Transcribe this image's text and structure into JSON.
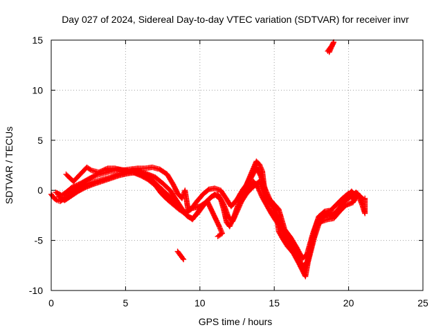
{
  "chart_data": {
    "type": "scatter",
    "title": "Day 027 of 2024, Sidereal Day-to-day VTEC variation (SDTVAR) for receiver invr",
    "xlabel": "GPS time / hours",
    "ylabel": "SDTVAR / TECUs",
    "xlim": [
      0,
      25
    ],
    "ylim": [
      -10,
      15
    ],
    "xticks": [
      0,
      5,
      10,
      15,
      20,
      25
    ],
    "yticks": [
      -10,
      -5,
      0,
      5,
      10,
      15
    ],
    "grid": true,
    "marker": "plus",
    "color": "#ff0000",
    "series": [
      {
        "name": "main-track-a",
        "points": [
          [
            0,
            -0.4
          ],
          [
            0.2,
            -0.8
          ],
          [
            0.4,
            -1.0
          ],
          [
            0.6,
            -1.1
          ],
          [
            0.8,
            -0.9
          ],
          [
            1,
            -0.6
          ],
          [
            1.2,
            -0.3
          ],
          [
            1.5,
            0
          ],
          [
            1.8,
            0.2
          ],
          [
            2,
            0.4
          ],
          [
            2.2,
            0.6
          ],
          [
            2.5,
            0.7
          ],
          [
            3,
            0.9
          ],
          [
            3.5,
            1.1
          ],
          [
            4,
            1.3
          ],
          [
            4.5,
            1.6
          ],
          [
            5,
            1.8
          ],
          [
            5.5,
            2.0
          ],
          [
            6,
            1.9
          ],
          [
            6.5,
            1.6
          ],
          [
            7,
            1.3
          ],
          [
            7.5,
            0.7
          ],
          [
            8,
            0
          ],
          [
            8.3,
            -0.7
          ],
          [
            8.6,
            -1.4
          ],
          [
            8.9,
            -2.1
          ],
          [
            9.2,
            -2.6
          ],
          [
            9.5,
            -2.8
          ],
          [
            9.8,
            -2.4
          ],
          [
            10.2,
            -1.6
          ],
          [
            10.6,
            -0.9
          ],
          [
            11,
            -0.4
          ],
          [
            11.4,
            -0.9
          ],
          [
            11.6,
            -1.9
          ],
          [
            11.8,
            -3.2
          ],
          [
            12,
            -3.6
          ],
          [
            12.3,
            -2.6
          ],
          [
            12.6,
            -1.3
          ],
          [
            13,
            -0.4
          ],
          [
            13.3,
            0.4
          ],
          [
            13.6,
            0.9
          ],
          [
            13.9,
            0.3
          ],
          [
            14.2,
            -0.7
          ],
          [
            14.5,
            -1.5
          ],
          [
            14.8,
            -2.3
          ],
          [
            15.1,
            -3.0
          ],
          [
            15.4,
            -3.6
          ],
          [
            15.8,
            -4.5
          ],
          [
            16.2,
            -5.5
          ],
          [
            16.6,
            -6.6
          ],
          [
            16.9,
            -7.6
          ],
          [
            17.2,
            -7.2
          ],
          [
            17.5,
            -5.2
          ],
          [
            17.9,
            -3.1
          ],
          [
            18.3,
            -2.4
          ],
          [
            18.7,
            -2.2
          ],
          [
            19.1,
            -2.3
          ],
          [
            19.5,
            -1.6
          ],
          [
            19.9,
            -0.6
          ],
          [
            20.2,
            -0.1
          ],
          [
            20.5,
            -0.6
          ]
        ]
      },
      {
        "name": "main-track-b",
        "points": [
          [
            0.3,
            -0.2
          ],
          [
            0.7,
            -0.5
          ],
          [
            1,
            -0.2
          ],
          [
            1.4,
            0.3
          ],
          [
            2,
            0.7
          ],
          [
            2.6,
            1.2
          ],
          [
            3,
            1.5
          ],
          [
            3.5,
            1.7
          ],
          [
            4,
            1.9
          ],
          [
            4.5,
            2.1
          ],
          [
            5,
            2.0
          ],
          [
            5.5,
            1.8
          ],
          [
            6,
            1.5
          ],
          [
            6.5,
            1.1
          ],
          [
            7,
            0.5
          ],
          [
            7.4,
            -0.3
          ],
          [
            7.8,
            -0.9
          ],
          [
            8.2,
            -1.4
          ],
          [
            8.6,
            -1.9
          ],
          [
            9,
            -2.3
          ],
          [
            9.4,
            -1.9
          ],
          [
            9.8,
            -1.1
          ],
          [
            10.2,
            -0.4
          ],
          [
            10.6,
            0.1
          ],
          [
            11,
            0.2
          ],
          [
            11.4,
            0
          ],
          [
            11.8,
            -0.9
          ],
          [
            12.1,
            -1.6
          ],
          [
            12.5,
            -0.9
          ],
          [
            12.9,
            0.1
          ],
          [
            13.2,
            0.7
          ],
          [
            13.5,
            1.4
          ],
          [
            13.8,
            2.3
          ],
          [
            14.1,
            1.4
          ],
          [
            14.4,
            0.1
          ],
          [
            14.7,
            -0.9
          ],
          [
            15,
            -1.4
          ],
          [
            15.3,
            -1.9
          ],
          [
            15.7,
            -3.9
          ],
          [
            16.1,
            -4.7
          ],
          [
            16.5,
            -5.7
          ],
          [
            16.9,
            -6.8
          ],
          [
            17.2,
            -6.4
          ],
          [
            17.6,
            -4.3
          ],
          [
            18,
            -2.6
          ],
          [
            18.4,
            -2.1
          ],
          [
            18.8,
            -2.0
          ],
          [
            19.2,
            -1.4
          ],
          [
            19.6,
            -0.8
          ],
          [
            20,
            -0.3
          ],
          [
            20.4,
            -1.0
          ]
        ]
      },
      {
        "name": "main-track-c",
        "points": [
          [
            0.5,
            -0.6
          ],
          [
            0.9,
            -1.0
          ],
          [
            1.3,
            -0.6
          ],
          [
            1.8,
            -0.1
          ],
          [
            2.3,
            0.3
          ],
          [
            2.8,
            0.6
          ],
          [
            3.4,
            0.9
          ],
          [
            4,
            1.2
          ],
          [
            4.6,
            1.5
          ],
          [
            5.2,
            1.7
          ],
          [
            5.8,
            1.8
          ],
          [
            6.3,
            1.5
          ],
          [
            6.8,
            1.0
          ],
          [
            7.3,
            0.3
          ],
          [
            7.8,
            -0.4
          ],
          [
            8.2,
            -1.0
          ],
          [
            8.7,
            -1.7
          ],
          [
            9.1,
            -2.5
          ],
          [
            9.5,
            -2.9
          ],
          [
            9.9,
            -2.1
          ],
          [
            10.3,
            -1.3
          ],
          [
            10.8,
            -0.6
          ],
          [
            11.2,
            -0.4
          ],
          [
            11.6,
            -1.4
          ],
          [
            11.9,
            -2.6
          ],
          [
            12.2,
            -3.1
          ],
          [
            12.5,
            -2.1
          ],
          [
            12.8,
            -1.1
          ],
          [
            13.1,
            -0.4
          ],
          [
            13.4,
            0.1
          ],
          [
            13.7,
            0.5
          ],
          [
            14,
            0.9
          ],
          [
            14.3,
            0
          ],
          [
            14.6,
            -1.1
          ],
          [
            15,
            -1.7
          ],
          [
            15.4,
            -3.3
          ],
          [
            15.8,
            -5.3
          ],
          [
            16.2,
            -5.9
          ],
          [
            16.6,
            -6.9
          ],
          [
            17,
            -8.0
          ],
          [
            17.3,
            -7.0
          ],
          [
            17.7,
            -4.7
          ],
          [
            18.1,
            -2.9
          ],
          [
            18.5,
            -2.5
          ],
          [
            18.9,
            -2.6
          ],
          [
            19.3,
            -1.9
          ],
          [
            19.7,
            -1.1
          ],
          [
            20.1,
            -0.7
          ],
          [
            20.5,
            -0.2
          ],
          [
            21,
            -0.9
          ]
        ]
      },
      {
        "name": "main-track-d",
        "points": [
          [
            1,
            1.6
          ],
          [
            1.2,
            1.3
          ],
          [
            1.5,
            0.9
          ],
          [
            2.4,
            2.3
          ],
          [
            2.7,
            2.0
          ],
          [
            3.2,
            1.8
          ],
          [
            3.8,
            2.2
          ],
          [
            4.3,
            2.2
          ],
          [
            4.8,
            2.0
          ],
          [
            5.3,
            2.1
          ],
          [
            5.8,
            2.2
          ],
          [
            6.3,
            2.2
          ],
          [
            6.8,
            2.3
          ],
          [
            7.3,
            2.1
          ],
          [
            7.8,
            1.6
          ],
          [
            8.2,
            0.6
          ],
          [
            8.5,
            -0.3
          ],
          [
            8.8,
            -0.8
          ],
          [
            9,
            0
          ],
          [
            9.2,
            -1.9
          ],
          [
            10,
            -1.6
          ],
          [
            10.5,
            -1.1
          ],
          [
            11.3,
            -3.6
          ],
          [
            11.5,
            -4.3
          ],
          [
            11.2,
            -4.6
          ],
          [
            12.7,
            -0.4
          ],
          [
            13,
            0.1
          ],
          [
            13.8,
            2.9
          ],
          [
            14,
            2.6
          ],
          [
            14.2,
            1.9
          ],
          [
            14.4,
            -0.6
          ],
          [
            14.9,
            -1.6
          ],
          [
            15.2,
            -2.9
          ],
          [
            15.3,
            -4.1
          ],
          [
            15.6,
            -4.9
          ],
          [
            15.9,
            -5.6
          ],
          [
            16.3,
            -6.3
          ],
          [
            16.7,
            -7.4
          ],
          [
            17,
            -8.3
          ],
          [
            17.1,
            -8.6
          ],
          [
            17.4,
            -6.1
          ],
          [
            17.8,
            -3.6
          ],
          [
            18.2,
            -3.1
          ],
          [
            18.6,
            -2.9
          ],
          [
            19,
            -2.8
          ],
          [
            19.4,
            -2.1
          ],
          [
            19.8,
            -1.5
          ],
          [
            20.3,
            -1.2
          ],
          [
            20.6,
            -0.3
          ],
          [
            20.9,
            -1.4
          ],
          [
            21.1,
            -2.3
          ],
          [
            21.1,
            -0.8
          ]
        ]
      },
      {
        "name": "isolated-segment-9h",
        "points": [
          [
            8.5,
            -6.1
          ],
          [
            8.6,
            -6.3
          ],
          [
            8.7,
            -6.5
          ],
          [
            8.8,
            -6.7
          ],
          [
            8.9,
            -6.9
          ]
        ]
      },
      {
        "name": "isolated-segment-18h",
        "points": [
          [
            18.6,
            13.9
          ],
          [
            18.7,
            14.1
          ],
          [
            18.8,
            14.3
          ],
          [
            18.9,
            14.5
          ],
          [
            19.0,
            14.8
          ],
          [
            18.7,
            13.8
          ]
        ]
      }
    ]
  }
}
